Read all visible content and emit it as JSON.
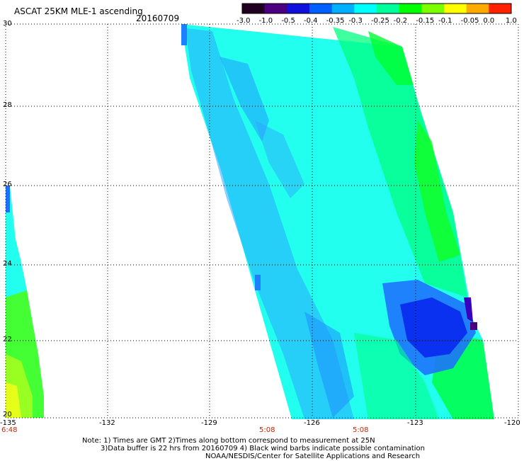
{
  "header": {
    "title": "ASCAT 25KM MLE-1 ascending",
    "date": "20160709"
  },
  "colorbar": {
    "labels": [
      "-3.0",
      "-1.0",
      "-0.5",
      "-0.4",
      "-0.35",
      "-0.3",
      "-0.25",
      "-0.2",
      "-0.15",
      "-0.1",
      "-0.05",
      "0.0",
      "1.0"
    ],
    "colors": [
      "#200020",
      "#4b0080",
      "#1010dd",
      "#0060ff",
      "#00b0ff",
      "#00ffff",
      "#00ff9a",
      "#00ff00",
      "#7cff00",
      "#ffff00",
      "#ffaa00",
      "#ff2200"
    ]
  },
  "axes": {
    "y_labels": [
      "30",
      "28",
      "26",
      "24",
      "22",
      "20"
    ],
    "x_labels": [
      "-135",
      "-132",
      "-129",
      "-126",
      "-123",
      "-120"
    ]
  },
  "times": [
    "6:48",
    "5:08",
    "5:08"
  ],
  "notes": {
    "line1": "Note: 1) Times are GMT 2)Times along bottom correspond to measurement at 25N",
    "line2": "3)Data buffer is 22 hrs from 20160709 4) Black wind barbs indicate possible contamination",
    "line3": "NOAA/NESDIS/Center for Satellite Applications and Research"
  }
}
